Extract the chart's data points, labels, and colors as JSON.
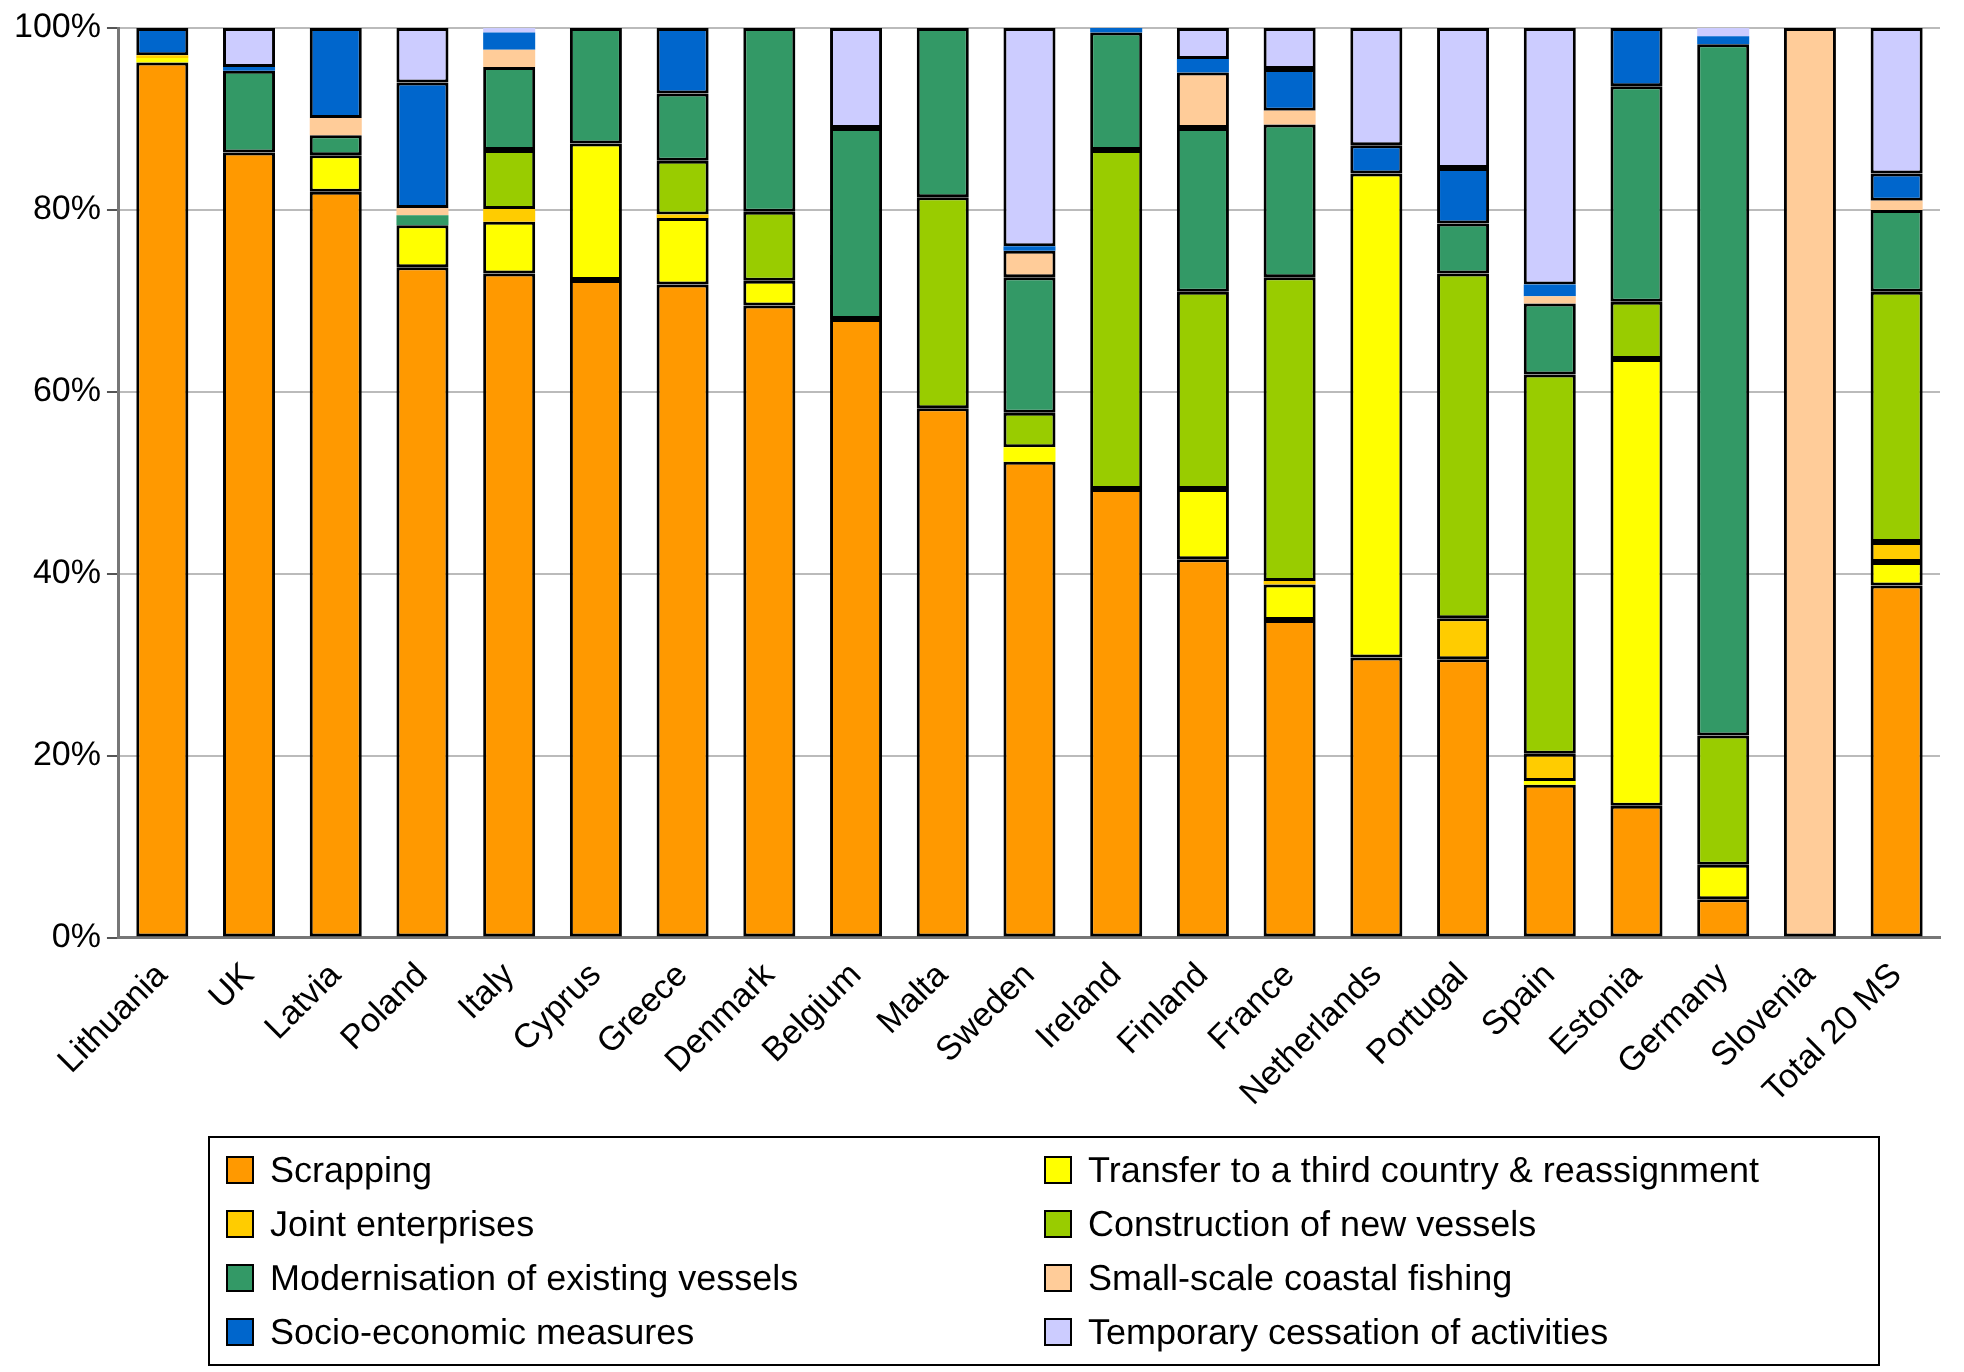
{
  "chart_data": {
    "type": "bar",
    "stacked": true,
    "grid": "y",
    "legend": "bottom",
    "categories": [
      "Lithuania",
      "UK",
      "Latvia",
      "Poland",
      "Italy",
      "Cyprus",
      "Greece",
      "Denmark",
      "Belgium",
      "Malta",
      "Sweden",
      "Ireland",
      "Finland",
      "France",
      "Netherlands",
      "Portugal",
      "Spain",
      "Estonia",
      "Germany",
      "Slovenia",
      "Total 20 MS"
    ],
    "ylim": [
      0,
      100
    ],
    "yticks": [
      {
        "value": 0,
        "label": "0%"
      },
      {
        "value": 20,
        "label": "20%"
      },
      {
        "value": 40,
        "label": "40%"
      },
      {
        "value": 60,
        "label": "60%"
      },
      {
        "value": 80,
        "label": "80%"
      },
      {
        "value": 100,
        "label": "100%"
      }
    ],
    "series": [
      {
        "name": "Scrapping",
        "color": "#ff9900",
        "values": [
          96.2,
          86.3,
          82.0,
          73.7,
          73.0,
          72.3,
          71.8,
          69.5,
          68.0,
          58.2,
          52.3,
          49.3,
          41.6,
          34.9,
          30.8,
          30.6,
          16.8,
          14.5,
          4.2,
          0,
          38.7
        ]
      },
      {
        "name": "Transfer to a third country & reassignment",
        "color": "#ffff00",
        "values": [
          0.5,
          0,
          4.0,
          4.6,
          5.7,
          15.0,
          7.3,
          2.7,
          0,
          0,
          1.6,
          0,
          7.7,
          3.9,
          53.2,
          0,
          0.4,
          49.1,
          3.8,
          0,
          2.6
        ]
      },
      {
        "name": "Joint enterprises",
        "color": "#ffcc00",
        "values": [
          0.3,
          0,
          0,
          0,
          1.4,
          0,
          0.4,
          0,
          0,
          0,
          0,
          0,
          0,
          0.4,
          0,
          4.5,
          3.0,
          0,
          0,
          0,
          2.2
        ]
      },
      {
        "name": "Construction of new vessels",
        "color": "#99cc00",
        "values": [
          0,
          0,
          0,
          0,
          6.5,
          0,
          5.9,
          7.6,
          0,
          23.2,
          3.8,
          37.3,
          21.7,
          33.4,
          0,
          37.9,
          41.7,
          6.3,
          14.2,
          0,
          27.5
        ]
      },
      {
        "name": "Modernisation of existing vessels",
        "color": "#339966",
        "values": [
          0,
          9.0,
          2.2,
          1.1,
          9.1,
          12.7,
          7.4,
          20.2,
          21.0,
          18.6,
          14.9,
          12.9,
          18.0,
          16.8,
          0,
          5.5,
          7.8,
          23.7,
          76.0,
          0,
          9.0
        ]
      },
      {
        "name": "Small-scale coastal fishing",
        "color": "#ffcc99",
        "values": [
          0,
          0,
          1.9,
          0.8,
          1.9,
          0,
          0,
          0,
          0,
          0,
          2.9,
          0,
          6.1,
          1.5,
          0,
          0,
          0.8,
          0,
          0,
          100,
          1.0
        ]
      },
      {
        "name": "Socio-economic measures",
        "color": "#0066cc",
        "values": [
          3.0,
          0.4,
          9.9,
          13.8,
          1.9,
          0,
          7.2,
          0,
          0,
          0,
          0.5,
          0.5,
          1.5,
          4.6,
          3.1,
          6.1,
          1.3,
          6.4,
          0.9,
          0,
          3.0
        ]
      },
      {
        "name": "Temporary cessation of activities",
        "color": "#ccccff",
        "values": [
          0,
          4.3,
          0,
          6.0,
          0.5,
          0,
          0,
          0,
          11.0,
          0,
          24.0,
          0,
          3.4,
          4.5,
          12.9,
          15.4,
          28.2,
          0,
          0.9,
          0,
          16.0
        ]
      }
    ]
  }
}
